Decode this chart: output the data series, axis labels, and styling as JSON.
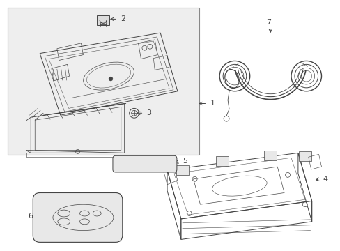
{
  "background_color": "#ffffff",
  "line_color": "#444444",
  "fig_width": 4.89,
  "fig_height": 3.6,
  "dpi": 100
}
